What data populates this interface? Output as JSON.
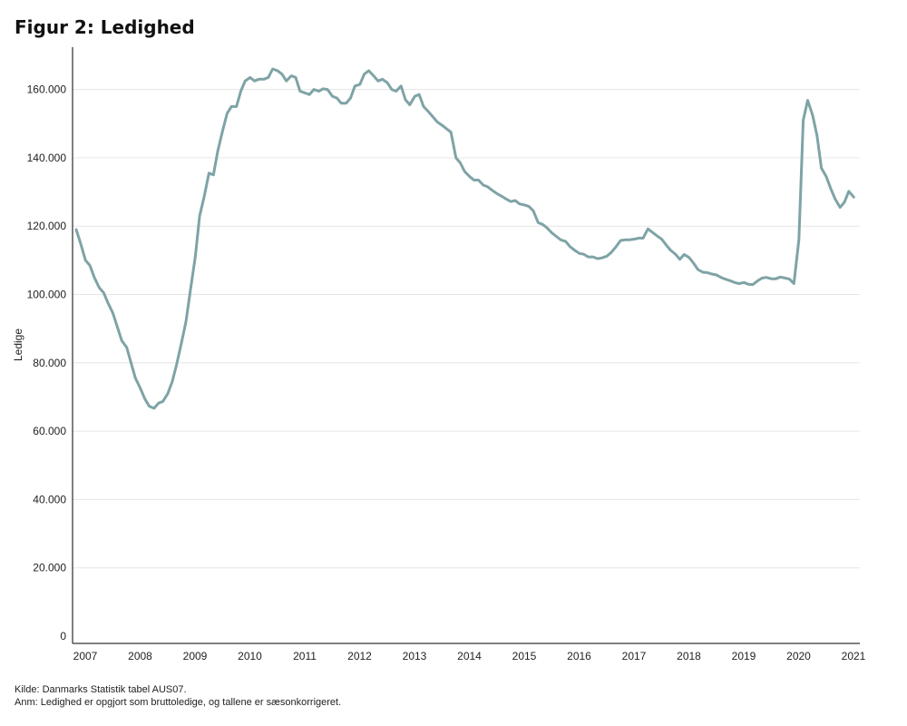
{
  "title": "Figur 2: Ledighed",
  "footer": {
    "source": "Kilde: Danmarks Statistik tabel AUS07.",
    "note": "Anm: Ledighed er opgjort som bruttoledige, og tallene er sæsonkorrigeret."
  },
  "chart_data": {
    "type": "line",
    "title": "Figur 2: Ledighed",
    "xlabel": "",
    "ylabel": "Ledige",
    "ylim": [
      0,
      172000
    ],
    "xlim": [
      2007.0,
      2021.25
    ],
    "grid": true,
    "line_color": "#7fa3a6",
    "y_ticks": [
      0,
      20000,
      40000,
      60000,
      80000,
      100000,
      120000,
      140000,
      160000
    ],
    "y_tick_labels": [
      "0",
      "20.000",
      "40.000",
      "60.000",
      "80.000",
      "100.000",
      "120.000",
      "140.000",
      "160.000"
    ],
    "x_ticks": [
      2007,
      2008,
      2009,
      2010,
      2011,
      2012,
      2013,
      2014,
      2015,
      2016,
      2017,
      2018,
      2019,
      2020,
      2021
    ],
    "x_tick_labels": [
      "2007",
      "2008",
      "2009",
      "2010",
      "2011",
      "2012",
      "2013",
      "2014",
      "2015",
      "2016",
      "2017",
      "2018",
      "2019",
      "2020",
      "2021"
    ],
    "series": [
      {
        "x": [
          2007.0,
          2007.08,
          2007.17,
          2007.25,
          2007.33,
          2007.42,
          2007.5,
          2007.58,
          2007.67,
          2007.75,
          2007.83,
          2007.92,
          2008.0,
          2008.08,
          2008.17,
          2008.25,
          2008.33,
          2008.42,
          2008.5,
          2008.58,
          2008.67,
          2008.75,
          2008.83,
          2008.92,
          2009.0,
          2009.08,
          2009.17,
          2009.25,
          2009.33,
          2009.42,
          2009.5,
          2009.58,
          2009.67,
          2009.75,
          2009.83,
          2009.92,
          2010.0,
          2010.08,
          2010.17,
          2010.25,
          2010.33,
          2010.42,
          2010.5,
          2010.58,
          2010.67,
          2010.75,
          2010.83,
          2010.92,
          2011.0,
          2011.08,
          2011.17,
          2011.25,
          2011.33,
          2011.42,
          2011.5,
          2011.58,
          2011.67,
          2011.75,
          2011.83,
          2011.92,
          2012.0,
          2012.08,
          2012.17,
          2012.25,
          2012.33,
          2012.42,
          2012.5,
          2012.58,
          2012.67,
          2012.75,
          2012.83,
          2012.92,
          2013.0,
          2013.08,
          2013.17,
          2013.25,
          2013.33,
          2013.42,
          2013.5,
          2013.58,
          2013.67,
          2013.75,
          2013.83,
          2013.92,
          2014.0,
          2014.08,
          2014.17,
          2014.25,
          2014.33,
          2014.42,
          2014.5,
          2014.58,
          2014.67,
          2014.75,
          2014.83,
          2014.92,
          2015.0,
          2015.08,
          2015.17,
          2015.25,
          2015.33,
          2015.42,
          2015.5,
          2015.58,
          2015.67,
          2015.75,
          2015.83,
          2015.92,
          2016.0,
          2016.08,
          2016.17,
          2016.25,
          2016.33,
          2016.42,
          2016.5,
          2016.58,
          2016.67,
          2016.75,
          2016.83,
          2016.92,
          2017.0,
          2017.08,
          2017.17,
          2017.25,
          2017.33,
          2017.42,
          2017.5,
          2017.58,
          2017.67,
          2017.75,
          2017.83,
          2017.92,
          2018.0,
          2018.08,
          2018.17,
          2018.25,
          2018.33,
          2018.42,
          2018.5,
          2018.58,
          2018.67,
          2018.75,
          2018.83,
          2018.92,
          2019.0,
          2019.08,
          2019.17,
          2019.25,
          2019.33,
          2019.42,
          2019.5,
          2019.58,
          2019.67,
          2019.75,
          2019.83,
          2019.92,
          2020.0,
          2020.08,
          2020.17,
          2020.25,
          2020.33,
          2020.42,
          2020.5,
          2020.58,
          2020.67,
          2020.75,
          2020.83,
          2020.92,
          2021.0,
          2021.08,
          2021.17
        ],
        "values": [
          119000,
          115000,
          110000,
          108500,
          105000,
          102000,
          100500,
          97500,
          94500,
          90500,
          86500,
          84500,
          80000,
          75500,
          72500,
          69500,
          67300,
          66700,
          68200,
          68700,
          71000,
          74500,
          79500,
          86000,
          92000,
          101000,
          111000,
          123000,
          128500,
          135500,
          135000,
          142000,
          148000,
          153000,
          155000,
          155000,
          159500,
          162500,
          163500,
          162500,
          163000,
          163000,
          163500,
          166000,
          165500,
          164500,
          162500,
          164000,
          163500,
          159500,
          159000,
          158500,
          160000,
          159500,
          160200,
          160000,
          158000,
          157500,
          156000,
          156000,
          157500,
          161000,
          161500,
          164500,
          165500,
          164000,
          162500,
          163000,
          162000,
          160000,
          159500,
          161000,
          157000,
          155500,
          158000,
          158500,
          155000,
          153500,
          152000,
          150500,
          149500,
          148500,
          147500,
          140000,
          138500,
          136000,
          134500,
          133500,
          133500,
          132000,
          131500,
          130500,
          129500,
          128800,
          128000,
          127200,
          127500,
          126500,
          126200,
          125800,
          124500,
          121000,
          120500,
          119500,
          118000,
          117000,
          116000,
          115500,
          114000,
          113000,
          112000,
          111800,
          111000,
          111000,
          110500,
          110700,
          111200,
          112300,
          113800,
          115800,
          116000,
          116000,
          116200,
          116500,
          116500,
          119200,
          118200,
          117200,
          116200,
          114500,
          113000,
          111800,
          110300,
          111700,
          110800,
          109200,
          107300,
          106500,
          106400,
          106000,
          105700,
          105000,
          104500,
          104000,
          103500,
          103200,
          103500,
          103000,
          102900,
          104000,
          104800,
          105000,
          104600,
          104600,
          105100,
          104800,
          104500,
          103200,
          116000,
          151000,
          156800,
          152500,
          146500,
          137000,
          134500,
          131000,
          128000,
          125500,
          127000,
          130200,
          128500
        ]
      }
    ]
  }
}
